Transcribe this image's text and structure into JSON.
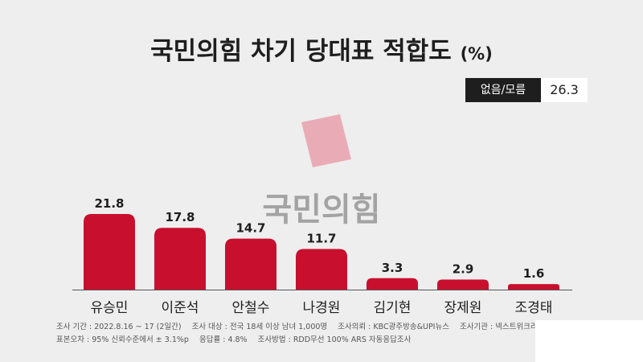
{
  "title": "국민의힘 차기 당대표 적합도",
  "title_unit": "(%)",
  "no_opinion": {
    "label": "없음/모름",
    "value": "26.3"
  },
  "watermark": "국민의힘",
  "colors": {
    "bar": "#c8102e",
    "watermark_mark": "#e8a0ab",
    "background": "#eeeeee"
  },
  "chart_data": {
    "type": "bar",
    "categories": [
      "유승민",
      "이준석",
      "안철수",
      "나경원",
      "김기현",
      "장제원",
      "조경태"
    ],
    "values": [
      21.8,
      17.8,
      14.7,
      11.7,
      3.3,
      2.9,
      1.6
    ],
    "value_labels": [
      "21.8",
      "17.8",
      "14.7",
      "11.7",
      "3.3",
      "2.9",
      "1.6"
    ],
    "ylim": [
      0,
      23.3
    ],
    "grid": false
  },
  "footer": {
    "line1": [
      "조사 기간 : 2022.8.16 ~ 17 (2일간)",
      "조사 대상 : 전국 18세 이상 남녀 1,000명",
      "조사의뢰 : KBC광주방송&UPI뉴스",
      "조사기관 : 넥스트위크리서치"
    ],
    "line2": [
      "표본오차 : 95% 신뢰수준에서 ± 3.1%p",
      "응답률 : 4.8%",
      "조사방법 : RDD무선 100% ARS 자동응답조사"
    ]
  }
}
